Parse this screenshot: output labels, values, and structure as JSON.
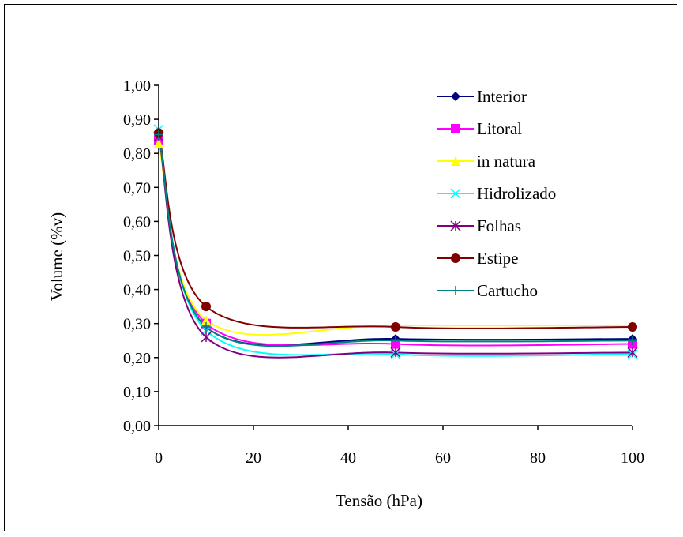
{
  "chart_data": {
    "type": "line",
    "title": "",
    "xlabel": "Tensão (hPa)",
    "ylabel": "Volume (%v)",
    "xlim": [
      0,
      100
    ],
    "ylim": [
      0,
      1.0
    ],
    "x_ticks": [
      "0",
      "20",
      "40",
      "60",
      "80",
      "100"
    ],
    "y_ticks": [
      "0,00",
      "0,10",
      "0,20",
      "0,30",
      "0,40",
      "0,50",
      "0,60",
      "0,70",
      "0,80",
      "0,90",
      "1,00"
    ],
    "grid": false,
    "legend_position": "top-right",
    "x": [
      0,
      10,
      50,
      100
    ],
    "series": [
      {
        "name": "Interior",
        "values": [
          0.85,
          0.29,
          0.255,
          0.255
        ],
        "color": "#000080",
        "marker": "diamond"
      },
      {
        "name": "Litoral",
        "values": [
          0.84,
          0.3,
          0.24,
          0.24
        ],
        "color": "#ff00ff",
        "marker": "square"
      },
      {
        "name": "in natura",
        "values": [
          0.83,
          0.31,
          0.295,
          0.295
        ],
        "color": "#ffff00",
        "marker": "triangle"
      },
      {
        "name": "Hidrolizado",
        "values": [
          0.87,
          0.28,
          0.21,
          0.21
        ],
        "color": "#00ffff",
        "marker": "x"
      },
      {
        "name": "Folhas",
        "values": [
          0.85,
          0.26,
          0.215,
          0.215
        ],
        "color": "#800080",
        "marker": "star"
      },
      {
        "name": "Estipe",
        "values": [
          0.86,
          0.35,
          0.29,
          0.29
        ],
        "color": "#800000",
        "marker": "circle"
      },
      {
        "name": "Cartucho",
        "values": [
          0.855,
          0.29,
          0.25,
          0.25
        ],
        "color": "#008080",
        "marker": "plus"
      }
    ]
  }
}
